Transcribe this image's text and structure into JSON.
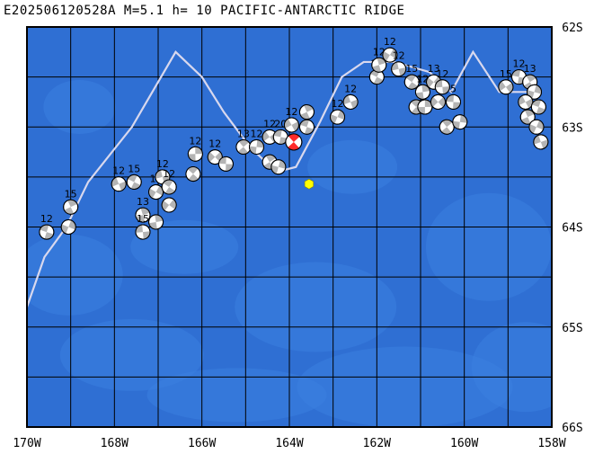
{
  "header": {
    "title": "E202506120528A M=5.1 h= 10 PACIFIC-ANTARCTIC RIDGE"
  },
  "map": {
    "lon_range": [
      -170,
      -158
    ],
    "lat_range": [
      -66,
      -62
    ],
    "colors": {
      "ocean": "#2f6fd3",
      "ocean_light": "#3a80e0",
      "ridge_line": "#d8d8ee",
      "grid": "#000000",
      "mechanism_fill": "#b4b4b4",
      "main_event_fill": "#ff2a2a",
      "epicenter": "#ffff00"
    },
    "lon_labels": [
      "170W",
      "168W",
      "166W",
      "164W",
      "162W",
      "160W",
      "158W"
    ],
    "lat_labels": [
      "62S",
      "63S",
      "64S",
      "65S",
      "66S"
    ],
    "ridge_path": [
      [
        -170.0,
        -64.8
      ],
      [
        -169.6,
        -64.3
      ],
      [
        -169.1,
        -64.0
      ],
      [
        -168.6,
        -63.55
      ],
      [
        -167.6,
        -63.0
      ],
      [
        -166.6,
        -62.25
      ],
      [
        -166.0,
        -62.5
      ],
      [
        -165.5,
        -62.85
      ],
      [
        -164.9,
        -63.2
      ],
      [
        -164.3,
        -63.45
      ],
      [
        -163.85,
        -63.4
      ],
      [
        -163.3,
        -62.95
      ],
      [
        -162.8,
        -62.5
      ],
      [
        -162.3,
        -62.35
      ],
      [
        -161.6,
        -62.35
      ],
      [
        -160.8,
        -62.45
      ],
      [
        -160.3,
        -62.65
      ],
      [
        -159.8,
        -62.25
      ],
      [
        -159.2,
        -62.65
      ],
      [
        -158.4,
        -62.65
      ]
    ],
    "epicenter": {
      "lon": -163.55,
      "lat": -63.57
    },
    "main_event": {
      "lon": -163.9,
      "lat": -63.15,
      "label": ""
    },
    "mechanisms": [
      {
        "lon": -169.55,
        "lat": -64.05,
        "label": "12"
      },
      {
        "lon": -169.0,
        "lat": -63.8,
        "label": "15"
      },
      {
        "lon": -169.05,
        "lat": -64.0,
        "label": ""
      },
      {
        "lon": -167.9,
        "lat": -63.57,
        "label": "12"
      },
      {
        "lon": -167.55,
        "lat": -63.55,
        "label": "15"
      },
      {
        "lon": -167.35,
        "lat": -63.88,
        "label": "13"
      },
      {
        "lon": -167.05,
        "lat": -63.65,
        "label": "12"
      },
      {
        "lon": -166.9,
        "lat": -63.5,
        "label": "12"
      },
      {
        "lon": -166.75,
        "lat": -63.6,
        "label": "12"
      },
      {
        "lon": -167.05,
        "lat": -63.95,
        "label": ""
      },
      {
        "lon": -166.75,
        "lat": -63.78,
        "label": ""
      },
      {
        "lon": -167.35,
        "lat": -64.05,
        "label": "15"
      },
      {
        "lon": -166.2,
        "lat": -63.47,
        "label": ""
      },
      {
        "lon": -166.15,
        "lat": -63.27,
        "label": "12"
      },
      {
        "lon": -165.7,
        "lat": -63.3,
        "label": "12"
      },
      {
        "lon": -165.45,
        "lat": -63.37,
        "label": ""
      },
      {
        "lon": -165.05,
        "lat": -63.2,
        "label": "13"
      },
      {
        "lon": -164.75,
        "lat": -63.2,
        "label": "12"
      },
      {
        "lon": -164.45,
        "lat": -63.1,
        "label": "12"
      },
      {
        "lon": -164.2,
        "lat": -63.1,
        "label": "20"
      },
      {
        "lon": -164.45,
        "lat": -63.35,
        "label": ""
      },
      {
        "lon": -164.25,
        "lat": -63.4,
        "label": ""
      },
      {
        "lon": -163.95,
        "lat": -62.98,
        "label": "12"
      },
      {
        "lon": -163.6,
        "lat": -63.0,
        "label": "12"
      },
      {
        "lon": -163.6,
        "lat": -62.85,
        "label": ""
      },
      {
        "lon": -162.9,
        "lat": -62.9,
        "label": "12"
      },
      {
        "lon": -162.6,
        "lat": -62.75,
        "label": "12"
      },
      {
        "lon": -162.0,
        "lat": -62.5,
        "label": "12"
      },
      {
        "lon": -161.95,
        "lat": -62.38,
        "label": "12"
      },
      {
        "lon": -161.7,
        "lat": -62.28,
        "label": "12"
      },
      {
        "lon": -161.5,
        "lat": -62.42,
        "label": "12"
      },
      {
        "lon": -161.2,
        "lat": -62.55,
        "label": "15"
      },
      {
        "lon": -160.95,
        "lat": -62.65,
        "label": "12"
      },
      {
        "lon": -160.7,
        "lat": -62.55,
        "label": "13"
      },
      {
        "lon": -160.5,
        "lat": -62.6,
        "label": "12"
      },
      {
        "lon": -161.1,
        "lat": -62.8,
        "label": ""
      },
      {
        "lon": -160.9,
        "lat": -62.8,
        "label": ""
      },
      {
        "lon": -160.6,
        "lat": -62.75,
        "label": ""
      },
      {
        "lon": -160.25,
        "lat": -62.75,
        "label": "5"
      },
      {
        "lon": -160.4,
        "lat": -63.0,
        "label": ""
      },
      {
        "lon": -160.1,
        "lat": -62.95,
        "label": ""
      },
      {
        "lon": -159.05,
        "lat": -62.6,
        "label": "15"
      },
      {
        "lon": -158.75,
        "lat": -62.5,
        "label": "12"
      },
      {
        "lon": -158.5,
        "lat": -62.55,
        "label": "13"
      },
      {
        "lon": -158.4,
        "lat": -62.65,
        "label": ""
      },
      {
        "lon": -158.6,
        "lat": -62.75,
        "label": ""
      },
      {
        "lon": -158.3,
        "lat": -62.8,
        "label": ""
      },
      {
        "lon": -158.55,
        "lat": -62.9,
        "label": ""
      },
      {
        "lon": -158.35,
        "lat": -63.0,
        "label": ""
      },
      {
        "lon": -158.25,
        "lat": -63.15,
        "label": ""
      }
    ]
  }
}
